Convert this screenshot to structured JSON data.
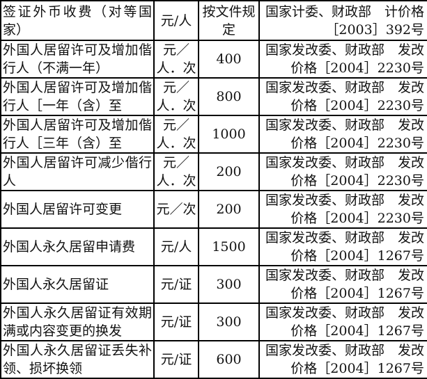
{
  "header": {
    "item": "签证外币收费（对等国家）",
    "unit": "元/人",
    "amount": "按文件规定",
    "basis": "国家计委、财政部　计价格［2003］392号"
  },
  "rows": [
    {
      "item": "外国人居留许可及增加偕行人（不满一年）",
      "unit": "元／人．次",
      "amount": "400",
      "basis": "国家发改委、财政部　发改价格［2004］2230号"
    },
    {
      "item": "外国人居留许可及增加偕行人［一年（含）至",
      "unit": "元／人．次",
      "amount": "800",
      "basis": "国家发改委、财政部　发改价格［2004］2230号"
    },
    {
      "item": "外国人居留许可及增加偕行人［三年（含）至",
      "unit": "元／人．次",
      "amount": "1000",
      "basis": "国家发改委、财政部　发改价格［2004］2230号"
    },
    {
      "item": "外国人居留许可减少偕行人",
      "unit": "元／人．次",
      "amount": "200",
      "basis": "国家发改委、财政部　发改价格［2004］2230号"
    },
    {
      "item": "外国人居留许可变更",
      "unit": "元／次",
      "amount": "200",
      "basis": "国家发改委、财政部　发改价格［2004］2230号"
    },
    {
      "item": "外国人永久居留申请费",
      "unit": "元/人",
      "amount": "1500",
      "basis": "国家发改委、财政部　发改价格［2004］1267号"
    },
    {
      "item": "外国人永久居留证",
      "unit": "元/证",
      "amount": "300",
      "basis": "国家发改委、财政部　发改价格［2004］1267号"
    },
    {
      "item": "外国人永久居留证有效期满或内容变更的换发",
      "unit": "元/证",
      "amount": "300",
      "basis": "国家发改委、财政部　发改价格［2004］1267号"
    },
    {
      "item": "外国人永久居留证丢失补领、损坏换领",
      "unit": "元/证",
      "amount": "600",
      "basis": "国家发改委、财政部　发改价格［2004］1267号"
    }
  ]
}
